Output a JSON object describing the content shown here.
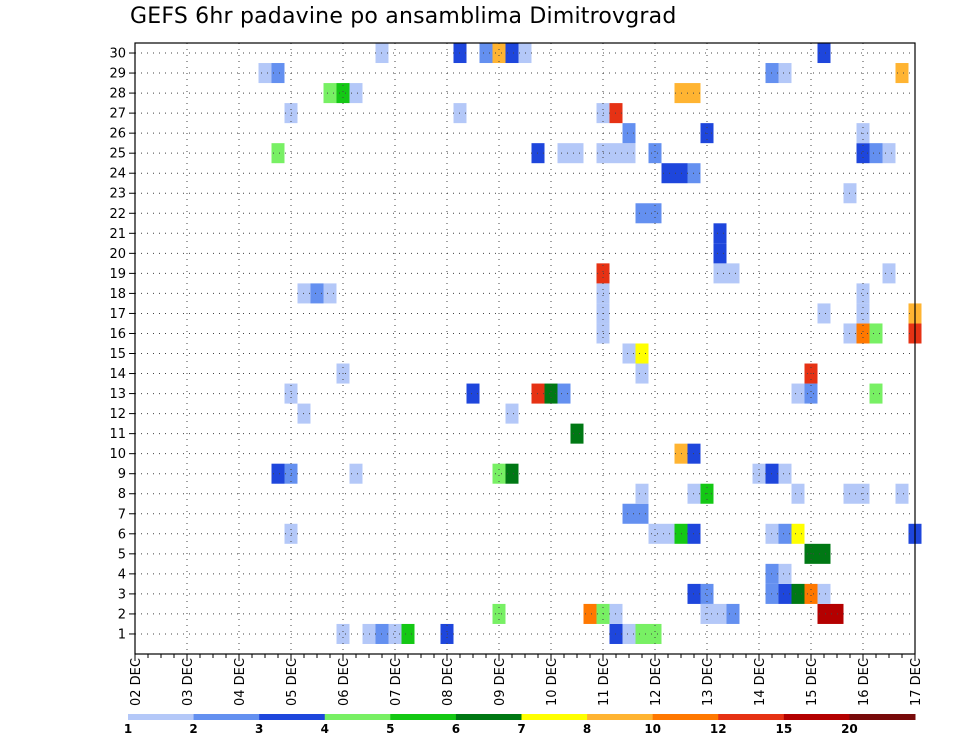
{
  "chart_data": {
    "type": "heatmap",
    "title": "GEFS 6hr padavine po ansamblima Dimitrovgrad",
    "xlabel": "",
    "ylabel": "",
    "x_tick_labels": [
      "02 DEC",
      "03 DEC",
      "04 DEC",
      "05 DEC",
      "06 DEC",
      "07 DEC",
      "08 DEC",
      "09 DEC",
      "10 DEC",
      "11 DEC",
      "12 DEC",
      "13 DEC",
      "14 DEC",
      "15 DEC",
      "16 DEC",
      "17 DEC"
    ],
    "y_tick_labels": [
      "1",
      "2",
      "3",
      "4",
      "5",
      "6",
      "7",
      "8",
      "9",
      "10",
      "11",
      "12",
      "13",
      "14",
      "15",
      "16",
      "17",
      "18",
      "19",
      "20",
      "21",
      "22",
      "23",
      "24",
      "25",
      "26",
      "27",
      "28",
      "29",
      "30"
    ],
    "x_unit": "6-hour step from 02 DEC",
    "ylim": [
      0,
      30
    ],
    "grid": true,
    "legend": {
      "placement": "bottom",
      "labels": [
        "1",
        "2",
        "3",
        "4",
        "5",
        "6",
        "7",
        "8",
        "10",
        "12",
        "15",
        "20"
      ],
      "colors": [
        "#b4c8f8",
        "#6490f0",
        "#1e46dc",
        "#78f064",
        "#14c814",
        "#007814",
        "#ffff00",
        "#ffb432",
        "#ff7800",
        "#e63214",
        "#b40000",
        "#780a0a"
      ]
    },
    "cells": [
      [
        1,
        16,
        0
      ],
      [
        1,
        18,
        0
      ],
      [
        1,
        19,
        1
      ],
      [
        1,
        20,
        0
      ],
      [
        1,
        24,
        2
      ],
      [
        1,
        21,
        4
      ],
      [
        1,
        37,
        2
      ],
      [
        1,
        38,
        0
      ],
      [
        1,
        39,
        3
      ],
      [
        1,
        40,
        3
      ],
      [
        2,
        28,
        3
      ],
      [
        2,
        35,
        8
      ],
      [
        2,
        36,
        3
      ],
      [
        2,
        37,
        0
      ],
      [
        2,
        44,
        0
      ],
      [
        2,
        45,
        0
      ],
      [
        2,
        46,
        1
      ],
      [
        2,
        53,
        10
      ],
      [
        2,
        54,
        10
      ],
      [
        3,
        43,
        2
      ],
      [
        3,
        44,
        1
      ],
      [
        3,
        49,
        1
      ],
      [
        3,
        50,
        2
      ],
      [
        3,
        51,
        5
      ],
      [
        3,
        52,
        8
      ],
      [
        3,
        53,
        0
      ],
      [
        4,
        49,
        1
      ],
      [
        4,
        50,
        0
      ],
      [
        5,
        52,
        5
      ],
      [
        5,
        53,
        5
      ],
      [
        6,
        12,
        0
      ],
      [
        6,
        40,
        0
      ],
      [
        6,
        41,
        0
      ],
      [
        6,
        42,
        4
      ],
      [
        6,
        43,
        2
      ],
      [
        6,
        49,
        0
      ],
      [
        6,
        50,
        1
      ],
      [
        6,
        51,
        6
      ],
      [
        6,
        60,
        2
      ],
      [
        7,
        38,
        1
      ],
      [
        7,
        39,
        1
      ],
      [
        8,
        39,
        0
      ],
      [
        8,
        43,
        0
      ],
      [
        8,
        44,
        4
      ],
      [
        8,
        51,
        0
      ],
      [
        8,
        55,
        0
      ],
      [
        8,
        56,
        0
      ],
      [
        8,
        59,
        0
      ],
      [
        9,
        11,
        2
      ],
      [
        9,
        12,
        1
      ],
      [
        9,
        17,
        0
      ],
      [
        9,
        28,
        3
      ],
      [
        9,
        29,
        5
      ],
      [
        9,
        48,
        0
      ],
      [
        9,
        49,
        2
      ],
      [
        9,
        50,
        0
      ],
      [
        10,
        42,
        7
      ],
      [
        10,
        43,
        2
      ],
      [
        11,
        34,
        5
      ],
      [
        12,
        13,
        0
      ],
      [
        12,
        29,
        0
      ],
      [
        13,
        12,
        0
      ],
      [
        13,
        26,
        2
      ],
      [
        13,
        31,
        9
      ],
      [
        13,
        32,
        5
      ],
      [
        13,
        33,
        1
      ],
      [
        13,
        51,
        0
      ],
      [
        13,
        52,
        1
      ],
      [
        13,
        57,
        3
      ],
      [
        14,
        16,
        0
      ],
      [
        14,
        39,
        0
      ],
      [
        14,
        52,
        9
      ],
      [
        15,
        38,
        0
      ],
      [
        15,
        39,
        6
      ],
      [
        16,
        36,
        0
      ],
      [
        16,
        55,
        0
      ],
      [
        16,
        56,
        8
      ],
      [
        16,
        57,
        3
      ],
      [
        16,
        60,
        9
      ],
      [
        17,
        36,
        0
      ],
      [
        17,
        53,
        0
      ],
      [
        17,
        56,
        0
      ],
      [
        17,
        60,
        7
      ],
      [
        18,
        13,
        0
      ],
      [
        18,
        14,
        1
      ],
      [
        18,
        15,
        0
      ],
      [
        18,
        36,
        0
      ],
      [
        18,
        56,
        0
      ],
      [
        19,
        36,
        9
      ],
      [
        19,
        45,
        0
      ],
      [
        19,
        46,
        0
      ],
      [
        19,
        58,
        0
      ],
      [
        20,
        45,
        2
      ],
      [
        21,
        45,
        2
      ],
      [
        22,
        39,
        1
      ],
      [
        22,
        40,
        1
      ],
      [
        23,
        55,
        0
      ],
      [
        24,
        41,
        2
      ],
      [
        24,
        42,
        2
      ],
      [
        24,
        43,
        1
      ],
      [
        25,
        11,
        3
      ],
      [
        25,
        31,
        2
      ],
      [
        25,
        33,
        0
      ],
      [
        25,
        34,
        0
      ],
      [
        25,
        36,
        0
      ],
      [
        25,
        37,
        0
      ],
      [
        25,
        38,
        0
      ],
      [
        25,
        40,
        1
      ],
      [
        25,
        56,
        2
      ],
      [
        25,
        57,
        1
      ],
      [
        25,
        58,
        0
      ],
      [
        26,
        38,
        1
      ],
      [
        26,
        44,
        2
      ],
      [
        26,
        56,
        0
      ],
      [
        27,
        12,
        0
      ],
      [
        27,
        25,
        0
      ],
      [
        27,
        36,
        0
      ],
      [
        27,
        37,
        9
      ],
      [
        28,
        15,
        3
      ],
      [
        28,
        16,
        4
      ],
      [
        28,
        17,
        0
      ],
      [
        28,
        42,
        7
      ],
      [
        28,
        43,
        7
      ],
      [
        29,
        10,
        0
      ],
      [
        29,
        11,
        1
      ],
      [
        29,
        49,
        1
      ],
      [
        29,
        50,
        0
      ],
      [
        29,
        59,
        7
      ],
      [
        30,
        19,
        0
      ],
      [
        30,
        25,
        2
      ],
      [
        30,
        27,
        1
      ],
      [
        30,
        28,
        7
      ],
      [
        30,
        29,
        2
      ],
      [
        30,
        30,
        0
      ],
      [
        30,
        53,
        2
      ]
    ]
  }
}
